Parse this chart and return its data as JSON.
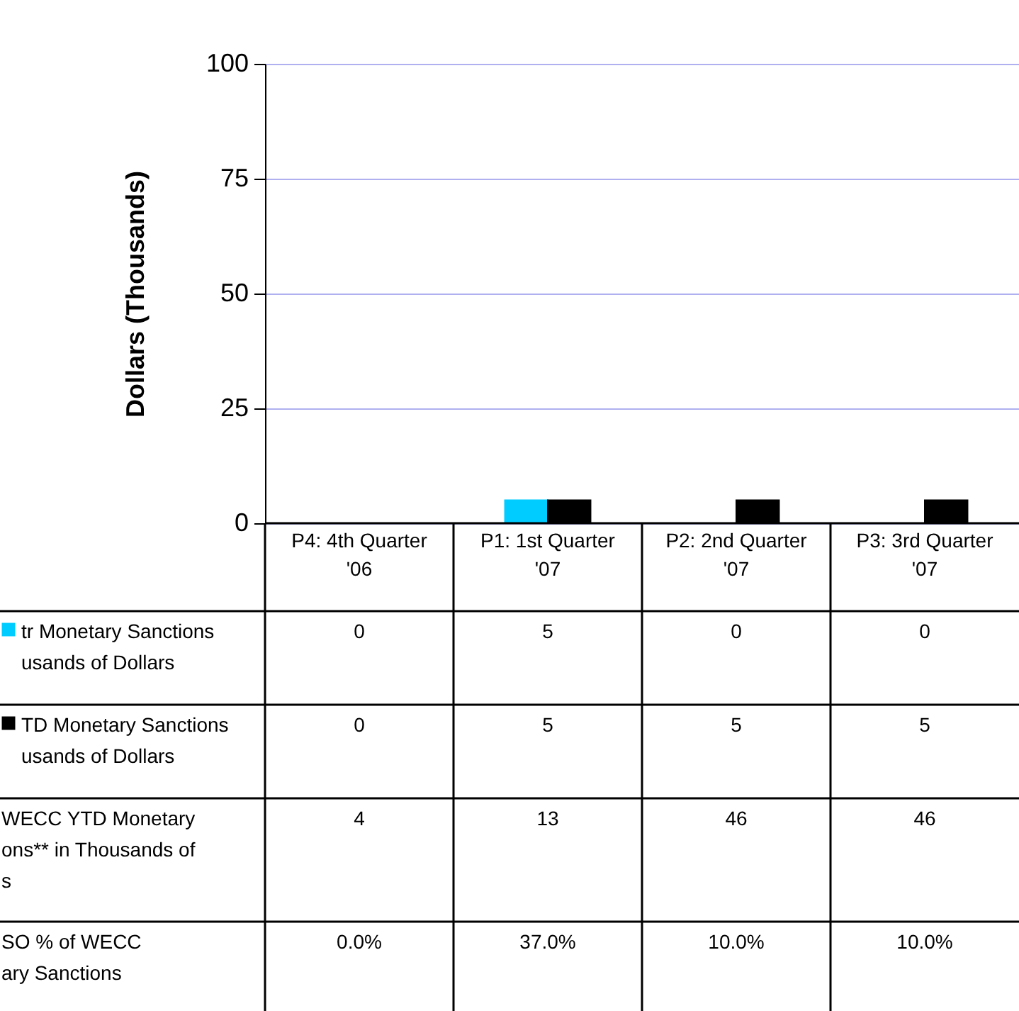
{
  "chart_data": {
    "type": "bar",
    "ylabel": "Dollars (Thousands)",
    "categories": [
      "P4: 4th Quarter '06",
      "P1: 1st Quarter '07",
      "P2: 2nd Quarter '07",
      "P3: 3rd Quarter '07"
    ],
    "series": [
      {
        "name": "tr Monetary Sanctions\nusands of Dollars",
        "color": "#00ccff",
        "values": [
          0,
          5,
          0,
          0
        ]
      },
      {
        "name": "TD Monetary Sanctions\nusands of Dollars",
        "color": "#000000",
        "values": [
          0,
          5,
          5,
          5
        ]
      }
    ],
    "annotations": [
      "WECC YTD Monetary\nons** in Thousands of\ns",
      "4",
      "13",
      "46",
      "46",
      "SO % of WECC\nary Sanctions",
      "0.0%",
      "37.0%",
      "10.0%",
      "10.0%"
    ],
    "ylim": [
      0,
      100
    ],
    "yticks": [
      0,
      25,
      50,
      75,
      100
    ],
    "grid": "y",
    "data_labels": true,
    "legend": "bottom left"
  }
}
